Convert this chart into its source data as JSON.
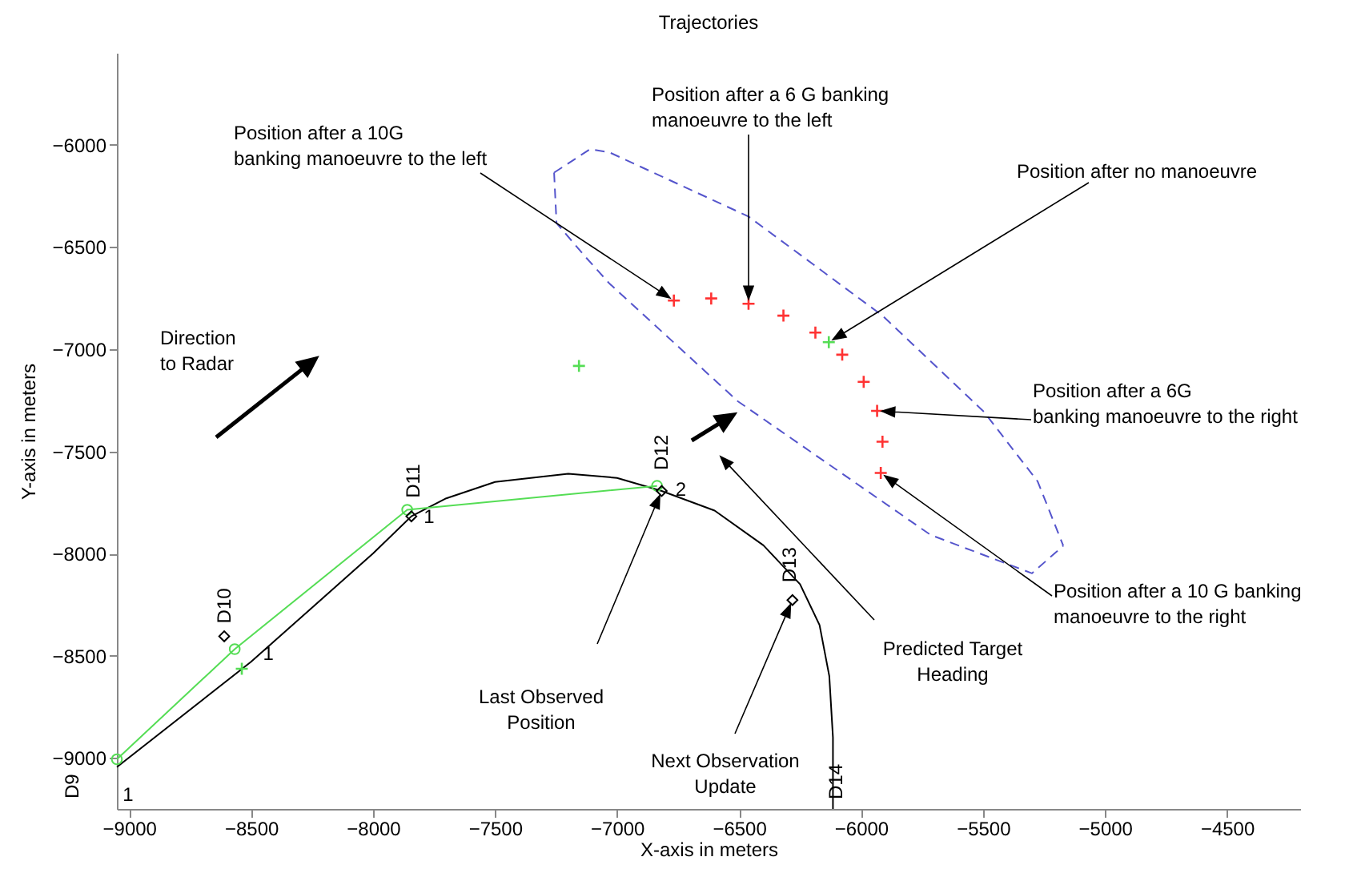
{
  "chart_data": {
    "type": "line",
    "title": "Trajectories",
    "xlabel": "X-axis in meters",
    "ylabel": "Y-axis in meters",
    "xlim": [
      -9050,
      -4200
    ],
    "ylim": [
      -9250,
      -5550
    ],
    "xticks": [
      -9000,
      -8500,
      -8000,
      -7500,
      -7000,
      -6500,
      -6000,
      -5500,
      -5000,
      -4500
    ],
    "yticks": [
      -9000,
      -8500,
      -8000,
      -7500,
      -7000,
      -6500,
      -6000
    ],
    "grid": false,
    "series": [
      {
        "type": "line",
        "color": "#000000",
        "line_style": "solid",
        "marker": "none",
        "x": [
          -9050,
          -8500,
          -8000,
          -7843,
          -7700,
          -7500,
          -7200,
          -7000,
          -6817,
          -6600,
          -6400,
          -6250,
          -6170,
          -6130,
          -6115,
          -6115
        ],
        "values": [
          -9045,
          -8530,
          -8000,
          -7818,
          -7730,
          -7650,
          -7610,
          -7630,
          -7694,
          -7790,
          -7960,
          -8150,
          -8350,
          -8600,
          -8900,
          -9250
        ]
      },
      {
        "type": "line",
        "color": "#55dd55",
        "line_style": "solid",
        "marker": "circle",
        "x": [
          -9050,
          -8567,
          -7860,
          -6836
        ],
        "values": [
          -9007,
          -8468,
          -7786,
          -7669
        ]
      },
      {
        "type": "scatter",
        "color": "#55dd55",
        "marker": "cross",
        "x": [
          -8538,
          -7156,
          -6132
        ],
        "values": [
          -8564,
          -7082,
          -6966
        ]
      },
      {
        "type": "scatter",
        "color": "#ff3333",
        "marker": "cross",
        "x": [
          -6767,
          -6614,
          -6461,
          -6318,
          -6187,
          -6077,
          -5989,
          -5934,
          -5912,
          -5919
        ],
        "values": [
          -6762,
          -6752,
          -6778,
          -6836,
          -6919,
          -7027,
          -7160,
          -7302,
          -7453,
          -7606
        ]
      },
      {
        "type": "scatter",
        "color": "#000000",
        "marker": "diamond",
        "x": [
          -8610,
          -7843,
          -6817,
          -6281
        ],
        "values": [
          -8405,
          -7818,
          -7694,
          -8228
        ]
      },
      {
        "type": "line",
        "color": "#5555cc",
        "line_style": "dashed",
        "marker": "none",
        "x": [
          -7258,
          -7110,
          -7031,
          -6461,
          -5912,
          -5496,
          -5276,
          -5171
        ],
        "values": [
          -6136,
          -6021,
          -6037,
          -6351,
          -6836,
          -7307,
          -7647,
          -7962
        ]
      },
      {
        "type": "line",
        "color": "#5555cc",
        "line_style": "dashed",
        "marker": "none",
        "x": [
          -7258,
          -7248,
          -7132,
          -7031,
          -6505,
          -5715,
          -5299,
          -5171
        ],
        "values": [
          -6136,
          -6383,
          -6545,
          -6679,
          -7255,
          -7909,
          -8097,
          -7962
        ]
      }
    ],
    "annotations": [
      "Position after a 10G\nbanking manoeuvre to the left",
      "Position after a 6 G banking\nmanoeuvre to the left",
      "Position after no manoeuvre",
      "Position after a 6G\nbanking manoeuvre to the right",
      "Position after a 10 G banking\nmanoeuvre to the right",
      "Predicted Target\nHeading",
      "Last Observed\nPosition",
      "Next Observation\nUpdate",
      "Direction\nto Radar",
      {
        "text": "D9",
        "x": -9050,
        "y": -9045
      },
      {
        "text": "D10",
        "x": -8610,
        "y": -8405
      },
      {
        "text": "D11",
        "x": -7843,
        "y": -7818
      },
      {
        "text": "D12",
        "x": -6817,
        "y": -7694
      },
      {
        "text": "D13",
        "x": -6281,
        "y": -8228
      },
      {
        "text": "D14",
        "x": -6115,
        "y": -9250
      },
      {
        "text": "1",
        "x": -8567,
        "y": -8468
      },
      {
        "text": "1",
        "x": -7843,
        "y": -7818
      },
      {
        "text": "2",
        "x": -6817,
        "y": -7694
      },
      {
        "text": "1",
        "x": -9050,
        "y": -9045
      }
    ]
  }
}
